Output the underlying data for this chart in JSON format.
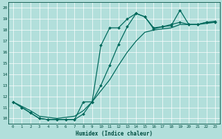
{
  "xlabel": "Humidex (Indice chaleur)",
  "xlim": [
    -0.5,
    23.5
  ],
  "ylim": [
    9.5,
    20.5
  ],
  "yticks": [
    10,
    11,
    12,
    13,
    14,
    15,
    16,
    17,
    18,
    19,
    20
  ],
  "xticks": [
    0,
    1,
    2,
    3,
    4,
    5,
    6,
    7,
    8,
    9,
    10,
    11,
    12,
    13,
    14,
    15,
    16,
    17,
    18,
    19,
    20,
    21,
    22,
    23
  ],
  "bg_color": "#b2dfdb",
  "grid_color": "#ffffff",
  "line_color": "#00695c",
  "lines": [
    {
      "x": [
        0,
        1,
        2,
        3,
        4,
        5,
        6,
        7,
        8,
        9,
        10,
        11,
        12,
        13,
        14,
        15,
        16,
        17,
        18,
        19,
        20,
        21,
        22,
        23
      ],
      "y": [
        11.5,
        11.1,
        10.7,
        10.2,
        10.1,
        10.0,
        10.1,
        10.2,
        10.7,
        11.5,
        12.5,
        13.5,
        14.8,
        16.0,
        17.0,
        17.8,
        18.0,
        18.1,
        18.2,
        18.5,
        18.5,
        18.5,
        18.6,
        18.7
      ],
      "marker": null,
      "markersize": 0,
      "linewidth": 0.9
    },
    {
      "x": [
        0,
        1,
        2,
        3,
        4,
        5,
        6,
        7,
        8,
        9,
        10,
        11,
        12,
        13,
        14,
        15,
        16,
        17,
        18,
        19,
        20,
        21,
        22,
        23
      ],
      "y": [
        11.5,
        11.0,
        10.5,
        10.0,
        9.9,
        9.9,
        9.9,
        9.9,
        10.4,
        11.5,
        13.0,
        14.8,
        16.7,
        18.3,
        19.5,
        19.2,
        18.2,
        18.3,
        18.5,
        18.7,
        18.5,
        18.5,
        18.7,
        18.8
      ],
      "marker": "D",
      "markersize": 2.0,
      "linewidth": 0.9
    },
    {
      "x": [
        0,
        1,
        2,
        3,
        4,
        5,
        6,
        7,
        8,
        9,
        10,
        11,
        12,
        13,
        14,
        15,
        16,
        17,
        18,
        19,
        20,
        21,
        22,
        23
      ],
      "y": [
        11.5,
        11.0,
        10.5,
        10.0,
        9.9,
        9.9,
        9.9,
        9.9,
        11.5,
        11.5,
        16.6,
        18.2,
        18.2,
        19.0,
        19.5,
        19.2,
        18.1,
        18.3,
        18.4,
        19.8,
        18.5,
        18.5,
        18.7,
        18.7
      ],
      "marker": "D",
      "markersize": 2.0,
      "linewidth": 0.9
    }
  ]
}
